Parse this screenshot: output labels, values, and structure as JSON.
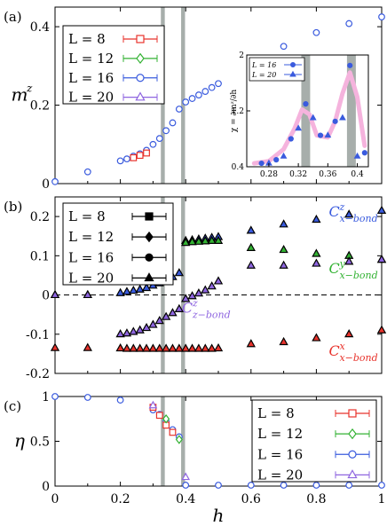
{
  "chart_data": [
    {
      "type": "scatter",
      "panel_label": "(a)",
      "ylabel": "m",
      "ylabel_sup": "z",
      "xlim": [
        0,
        1.0
      ],
      "ylim": [
        0,
        0.45
      ],
      "yticks": [
        0,
        0.2,
        0.4
      ],
      "ytick_labels": [
        "0",
        "0.2",
        "0.4"
      ],
      "grid": false,
      "legend_position": "top-left",
      "shaded_bands": [
        [
          0.324,
          0.336
        ],
        [
          0.386,
          0.398
        ]
      ],
      "legend": [
        {
          "label": "L = 8",
          "color": "#e8332c",
          "marker": "square"
        },
        {
          "label": "L = 12",
          "color": "#33b233",
          "marker": "diamond"
        },
        {
          "label": "L = 16",
          "color": "#3a5bde",
          "marker": "circle"
        },
        {
          "label": "L = 20",
          "color": "#8f66e0",
          "marker": "triangle"
        }
      ],
      "series": [
        {
          "name": "L = 16",
          "color": "#3a5bde",
          "marker": "circle",
          "x": [
            0,
            0.1,
            0.2,
            0.22,
            0.24,
            0.26,
            0.28,
            0.3,
            0.32,
            0.34,
            0.36,
            0.38,
            0.4,
            0.42,
            0.44,
            0.46,
            0.48,
            0.5,
            0.6,
            0.7,
            0.8,
            0.9,
            1.0
          ],
          "y": [
            0.005,
            0.03,
            0.058,
            0.063,
            0.07,
            0.076,
            0.085,
            0.1,
            0.115,
            0.135,
            0.155,
            0.19,
            0.208,
            0.217,
            0.226,
            0.235,
            0.245,
            0.255,
            0.31,
            0.35,
            0.385,
            0.408,
            0.425
          ]
        },
        {
          "name": "L = 8",
          "color": "#e8332c",
          "marker": "square",
          "x": [
            0.24,
            0.26,
            0.28
          ],
          "y": [
            0.066,
            0.072,
            0.078
          ]
        }
      ],
      "inset": {
        "ylabel": "χ = ∂mᶻ/∂h",
        "xlim": [
          0.25,
          0.415
        ],
        "ylim": [
          0.4,
          2.0
        ],
        "xticks": [
          0.28,
          0.32,
          0.36,
          0.4
        ],
        "xtick_labels": [
          "0.28",
          "0.32",
          "0.36",
          "0.4"
        ],
        "yticks": [
          0.4,
          1.2,
          2.0
        ],
        "ytick_labels": [
          "0.4",
          "1.2",
          "2"
        ],
        "shaded_bands": [
          [
            0.324,
            0.336
          ],
          [
            0.386,
            0.398
          ]
        ],
        "legend": [
          {
            "label": "L = 16",
            "color": "#3a5bde",
            "marker": "circle"
          },
          {
            "label": "L = 20",
            "color": "#3a5bde",
            "marker": "triangle"
          }
        ],
        "series": [
          {
            "name": "L = 16",
            "marker": "circle",
            "color": "#3a5bde",
            "x": [
              0.27,
              0.29,
              0.31,
              0.33,
              0.35,
              0.37,
              0.39,
              0.41
            ],
            "y": [
              0.45,
              0.5,
              0.8,
              1.3,
              0.85,
              1.05,
              1.85,
              0.6
            ]
          },
          {
            "name": "L = 20",
            "marker": "triangle",
            "color": "#3a5bde",
            "x": [
              0.28,
              0.3,
              0.32,
              0.34,
              0.36,
              0.38,
              0.4
            ],
            "y": [
              0.45,
              0.55,
              0.95,
              1.1,
              0.85,
              1.1,
              0.55
            ]
          }
        ],
        "fit_curve": {
          "color": "#f5b3dd",
          "x": [
            0.26,
            0.28,
            0.3,
            0.315,
            0.325,
            0.335,
            0.345,
            0.36,
            0.37,
            0.38,
            0.39,
            0.4,
            0.41
          ],
          "y": [
            0.45,
            0.48,
            0.65,
            0.95,
            1.22,
            1.15,
            0.85,
            0.82,
            1.05,
            1.45,
            1.75,
            1.4,
            0.7
          ]
        }
      }
    },
    {
      "type": "scatter",
      "panel_label": "(b)",
      "xlim": [
        0,
        1.0
      ],
      "ylim": [
        -0.2,
        0.25
      ],
      "yticks": [
        -0.2,
        -0.1,
        0,
        0.1,
        0.2
      ],
      "ytick_labels": [
        "-0.2",
        "-0.1",
        "0",
        "0.1",
        "0.2"
      ],
      "zero_line": true,
      "grid": false,
      "legend_position": "top-left",
      "shaded_bands": [
        [
          0.324,
          0.336
        ],
        [
          0.386,
          0.398
        ]
      ],
      "legend": [
        {
          "label": "L = 8",
          "marker": "square"
        },
        {
          "label": "L = 12",
          "marker": "diamond"
        },
        {
          "label": "L = 16",
          "marker": "circle"
        },
        {
          "label": "L = 20",
          "marker": "triangle"
        }
      ],
      "annotations": [
        {
          "base": "C",
          "sup": "z",
          "sub": "x−bond",
          "color": "#3a5bde",
          "x": 0.86,
          "y": 0.2
        },
        {
          "base": "C",
          "sup": "y",
          "sub": "x−bond",
          "color": "#33b233",
          "x": 0.86,
          "y": 0.055
        },
        {
          "base": "C",
          "sup": "z",
          "sub": "z−bond",
          "color": "#8f66e0",
          "x": 0.41,
          "y": -0.045
        },
        {
          "base": "C",
          "sup": "x",
          "sub": "x−bond",
          "color": "#e8332c",
          "x": 0.86,
          "y": -0.155
        }
      ],
      "series": [
        {
          "name": "Cz x-bond",
          "color": "#3a5bde",
          "x": [
            0,
            0.1,
            0.2,
            0.22,
            0.24,
            0.26,
            0.28,
            0.3,
            0.32,
            0.34,
            0.36,
            0.38,
            0.4,
            0.42,
            0.44,
            0.46,
            0.48,
            0.5,
            0.6,
            0.7,
            0.8,
            0.9,
            1.0
          ],
          "y": [
            0,
            0,
            0.005,
            0.008,
            0.011,
            0.014,
            0.018,
            0.024,
            0.03,
            0.038,
            0.046,
            0.056,
            0.138,
            0.14,
            0.142,
            0.144,
            0.146,
            0.148,
            0.164,
            0.18,
            0.192,
            0.205,
            0.215
          ]
        },
        {
          "name": "Cy x-bond",
          "color": "#33b233",
          "x": [
            0.4,
            0.42,
            0.44,
            0.46,
            0.48,
            0.5,
            0.6,
            0.7,
            0.8,
            0.9,
            1.0
          ],
          "y": [
            0.133,
            0.135,
            0.136,
            0.137,
            0.138,
            0.138,
            0.12,
            0.115,
            0.105,
            0.1,
            0.09
          ]
        },
        {
          "name": "Cz z-bond",
          "color": "#8f66e0",
          "x": [
            0,
            0.1,
            0.2,
            0.22,
            0.24,
            0.26,
            0.28,
            0.3,
            0.32,
            0.34,
            0.36,
            0.38,
            0.4,
            0.42,
            0.44,
            0.46,
            0.48,
            0.5,
            0.6,
            0.7,
            0.8,
            0.9,
            1.0
          ],
          "y": [
            0,
            0,
            -0.1,
            -0.098,
            -0.094,
            -0.09,
            -0.084,
            -0.076,
            -0.066,
            -0.056,
            -0.046,
            -0.036,
            -0.01,
            -0.003,
            0.004,
            0.012,
            0.022,
            0.035,
            0.075,
            0.075,
            0.08,
            0.085,
            0.09
          ]
        },
        {
          "name": "Cx x-bond",
          "color": "#e8332c",
          "x": [
            0,
            0.1,
            0.2,
            0.22,
            0.24,
            0.26,
            0.28,
            0.3,
            0.32,
            0.34,
            0.36,
            0.38,
            0.4,
            0.42,
            0.44,
            0.46,
            0.48,
            0.5,
            0.6,
            0.7,
            0.8,
            0.9,
            1.0
          ],
          "y": [
            -0.135,
            -0.135,
            -0.136,
            -0.137,
            -0.137,
            -0.137,
            -0.137,
            -0.137,
            -0.137,
            -0.137,
            -0.137,
            -0.137,
            -0.137,
            -0.137,
            -0.137,
            -0.137,
            -0.137,
            -0.136,
            -0.125,
            -0.12,
            -0.11,
            -0.1,
            -0.09
          ]
        }
      ]
    },
    {
      "type": "scatter",
      "panel_label": "(c)",
      "ylabel": "η",
      "xlabel": "h",
      "xlim": [
        0,
        1.0
      ],
      "ylim": [
        0,
        1.0
      ],
      "xticks": [
        0,
        0.2,
        0.4,
        0.6,
        0.8,
        1.0
      ],
      "xtick_labels": [
        "0",
        "0.2",
        "0.4",
        "0.6",
        "0.8",
        "1"
      ],
      "yticks": [
        0,
        0.5,
        1.0
      ],
      "ytick_labels": [
        "0",
        "0.5",
        "1"
      ],
      "grid": false,
      "legend_position": "top-right",
      "shaded_bands": [
        [
          0.324,
          0.336
        ],
        [
          0.386,
          0.398
        ]
      ],
      "legend": [
        {
          "label": "L = 8",
          "color": "#e8332c",
          "marker": "square"
        },
        {
          "label": "L = 12",
          "color": "#33b233",
          "marker": "diamond"
        },
        {
          "label": "L = 16",
          "color": "#3a5bde",
          "marker": "circle"
        },
        {
          "label": "L = 20",
          "color": "#8f66e0",
          "marker": "triangle"
        }
      ],
      "series": [
        {
          "name": "L = 16",
          "color": "#3a5bde",
          "marker": "circle",
          "x": [
            0,
            0.1,
            0.2,
            0.3,
            0.32,
            0.34,
            0.36,
            0.38,
            0.4,
            0.5,
            0.6,
            0.7,
            0.8,
            0.9,
            1.0
          ],
          "y": [
            1.0,
            0.99,
            0.96,
            0.85,
            0.8,
            0.72,
            0.63,
            0.55,
            0.01,
            0.01,
            0.01,
            0.01,
            0.01,
            0.01,
            0.01
          ]
        },
        {
          "name": "L = 8",
          "color": "#e8332c",
          "marker": "square",
          "x": [
            0.3,
            0.32,
            0.34,
            0.36
          ],
          "y": [
            0.88,
            0.79,
            0.68,
            0.6
          ]
        },
        {
          "name": "L = 12",
          "color": "#33b233",
          "marker": "diamond",
          "x": [
            0.34,
            0.38
          ],
          "y": [
            0.75,
            0.52
          ]
        },
        {
          "name": "L = 20",
          "color": "#8f66e0",
          "marker": "triangle",
          "x": [
            0.3,
            0.4
          ],
          "y": [
            0.9,
            0.1
          ]
        }
      ]
    }
  ]
}
